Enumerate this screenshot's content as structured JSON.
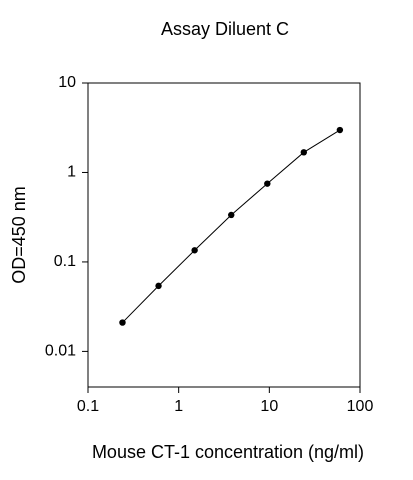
{
  "chart_data": {
    "type": "line",
    "title": "Assay Diluent C",
    "x_label": "Mouse CT-1 concentration (ng/ml)",
    "y_label": "OD=450 nm",
    "x": [
      0.24,
      0.6,
      1.5,
      3.8,
      9.5,
      24,
      60
    ],
    "series": [
      {
        "color": "#000000",
        "values": [
          0.021,
          0.054,
          0.135,
          0.335,
          0.75,
          1.68,
          2.98
        ]
      }
    ],
    "xscale": "log",
    "yscale": "log",
    "xlim": [
      0.1,
      100
    ],
    "ylim": [
      0.004,
      10
    ],
    "xticks": [
      0.1,
      1,
      10,
      100
    ],
    "yticks": [
      0.01,
      0.1,
      1,
      10
    ]
  }
}
